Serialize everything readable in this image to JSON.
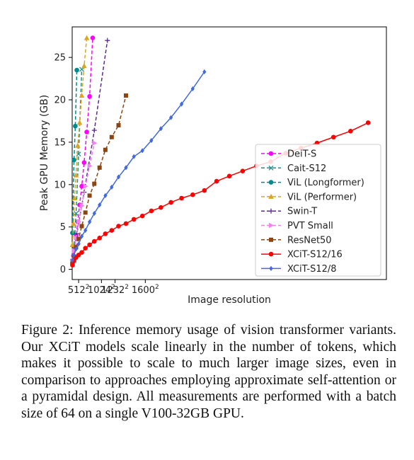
{
  "chart_data": {
    "type": "line",
    "xlabel": "Image resolution",
    "ylabel": "Peak GPU Memory (GB)",
    "x_scale": "square (tick labels show side length squared)",
    "x_ticks": [
      {
        "base": "512",
        "exp": "2"
      },
      {
        "base": "1024",
        "exp": "2"
      },
      {
        "base": "1232",
        "exp": "2"
      },
      {
        "base": "1600",
        "exp": "2"
      }
    ],
    "y_ticks": [
      0,
      5,
      10,
      15,
      20,
      25
    ],
    "grid": false,
    "legend_position": "lower-right",
    "series": [
      {
        "name": "DeiT-S",
        "color": "#ff00ff",
        "marker": "circle",
        "dash": "dashed",
        "points": [
          [
            224,
            0.8
          ],
          [
            288,
            1.6
          ],
          [
            352,
            2.6
          ],
          [
            416,
            4.0
          ],
          [
            480,
            5.6
          ],
          [
            544,
            7.6
          ],
          [
            608,
            9.8
          ],
          [
            672,
            12.6
          ],
          [
            736,
            16.2
          ],
          [
            800,
            20.4
          ],
          [
            864,
            27.3
          ]
        ]
      },
      {
        "name": "Cait-S12",
        "color": "#1f8f8f",
        "marker": "x",
        "dash": "dashed",
        "points": [
          [
            224,
            0.9
          ],
          [
            320,
            2.6
          ],
          [
            416,
            6.6
          ],
          [
            512,
            13.6
          ],
          [
            608,
            23.6
          ]
        ]
      },
      {
        "name": "ViL (Longformer)",
        "color": "#008b8b",
        "marker": "circle",
        "dash": "dashed",
        "points": [
          [
            224,
            4.3
          ],
          [
            320,
            12.9
          ],
          [
            384,
            16.9
          ],
          [
            448,
            23.5
          ]
        ]
      },
      {
        "name": "ViL (Performer)",
        "color": "#daa520",
        "marker": "triangle",
        "dash": "dashed",
        "points": [
          [
            224,
            2.9
          ],
          [
            288,
            5.4
          ],
          [
            352,
            8.4
          ],
          [
            416,
            11.1
          ],
          [
            480,
            14.6
          ],
          [
            544,
            17.3
          ],
          [
            608,
            20.5
          ],
          [
            672,
            24.0
          ],
          [
            736,
            27.3
          ]
        ]
      },
      {
        "name": "Swin-T",
        "color": "#5b2c8f",
        "marker": "plus",
        "dash": "dashed",
        "points": [
          [
            224,
            1.1
          ],
          [
            448,
            4.2
          ],
          [
            672,
            9.1
          ],
          [
            896,
            16.4
          ],
          [
            1120,
            27.0
          ]
        ]
      },
      {
        "name": "PVT Small",
        "color": "#ee82ee",
        "marker": "triangle-right",
        "dash": "dashed",
        "points": [
          [
            224,
            1.0
          ],
          [
            320,
            2.2
          ],
          [
            416,
            3.7
          ],
          [
            512,
            5.6
          ],
          [
            608,
            7.5
          ],
          [
            704,
            9.8
          ],
          [
            800,
            12.2
          ],
          [
            896,
            14.9
          ]
        ]
      },
      {
        "name": "ResNet50",
        "color": "#8b4513",
        "marker": "square",
        "dash": "dashed",
        "points": [
          [
            224,
            0.7
          ],
          [
            320,
            1.5
          ],
          [
            416,
            2.6
          ],
          [
            512,
            3.6
          ],
          [
            608,
            5.1
          ],
          [
            704,
            6.7
          ],
          [
            800,
            8.7
          ],
          [
            896,
            10.1
          ],
          [
            992,
            12.0
          ],
          [
            1088,
            14.1
          ],
          [
            1184,
            15.6
          ],
          [
            1280,
            17.0
          ],
          [
            1376,
            20.5
          ]
        ]
      },
      {
        "name": "XCiT-S12/16",
        "color": "#ff0000",
        "marker": "circle",
        "dash": "solid",
        "points": [
          [
            224,
            0.5
          ],
          [
            320,
            1.0
          ],
          [
            416,
            1.4
          ],
          [
            512,
            1.7
          ],
          [
            608,
            2.0
          ],
          [
            704,
            2.5
          ],
          [
            800,
            2.9
          ],
          [
            896,
            3.3
          ],
          [
            992,
            3.7
          ],
          [
            1088,
            4.2
          ],
          [
            1184,
            4.6
          ],
          [
            1280,
            5.1
          ],
          [
            1376,
            5.4
          ],
          [
            1472,
            5.9
          ],
          [
            1568,
            6.3
          ],
          [
            1664,
            6.9
          ],
          [
            1760,
            7.3
          ],
          [
            1856,
            7.9
          ],
          [
            1952,
            8.4
          ],
          [
            2048,
            8.8
          ],
          [
            2144,
            9.3
          ],
          [
            2240,
            10.4
          ],
          [
            2336,
            11.0
          ],
          [
            2432,
            11.6
          ],
          [
            2528,
            12.2
          ],
          [
            2624,
            12.7
          ],
          [
            2720,
            13.7
          ],
          [
            2816,
            14.3
          ],
          [
            2912,
            14.9
          ],
          [
            3008,
            15.6
          ],
          [
            3104,
            16.3
          ],
          [
            3200,
            17.3
          ]
        ]
      },
      {
        "name": "XCiT-S12/8",
        "color": "#4169e1",
        "marker": "diamond",
        "dash": "solid",
        "points": [
          [
            224,
            1.1
          ],
          [
            320,
            1.7
          ],
          [
            416,
            2.4
          ],
          [
            512,
            3.0
          ],
          [
            608,
            3.9
          ],
          [
            704,
            4.6
          ],
          [
            800,
            5.6
          ],
          [
            896,
            6.6
          ],
          [
            992,
            7.6
          ],
          [
            1088,
            8.7
          ],
          [
            1184,
            9.7
          ],
          [
            1280,
            10.9
          ],
          [
            1376,
            12.0
          ],
          [
            1472,
            13.3
          ],
          [
            1568,
            14.0
          ],
          [
            1664,
            15.2
          ],
          [
            1760,
            16.6
          ],
          [
            1856,
            17.9
          ],
          [
            1952,
            19.5
          ],
          [
            2048,
            21.3
          ],
          [
            2144,
            23.3
          ]
        ]
      }
    ]
  },
  "caption": "Figure 2: Inference memory usage of vision transformer variants. Our XCiT models scale linearly in the number of tokens, which makes it possible to scale to much larger image sizes, even in comparison to approaches employing approximate self-attention or a pyramidal design. All measurements are performed with a batch size of 64 on a single V100-32GB GPU."
}
